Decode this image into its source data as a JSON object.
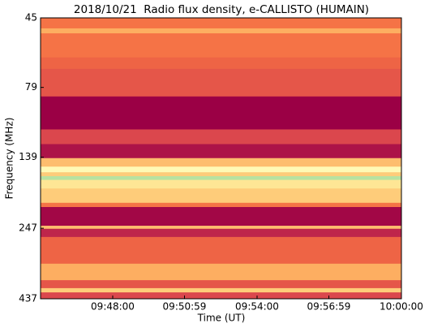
{
  "chart_data": {
    "type": "heatmap",
    "title": "2018/10/21  Radio flux density, e-CALLISTO (HUMAIN)",
    "xlabel": "Time (UT)",
    "ylabel": "Frequency (MHz)",
    "xlim": [
      "09:45:00",
      "10:00:00"
    ],
    "xticks": [
      "09:48:00",
      "09:50:59",
      "09:54:00",
      "09:56:59",
      "10:00:00"
    ],
    "ylim": [
      45,
      437
    ],
    "yticks": [
      45,
      79,
      139,
      247,
      437
    ],
    "y_log": true,
    "y_inverted": true,
    "y_bins": [
      45,
      49,
      51,
      62,
      68,
      85,
      111,
      125,
      140,
      150,
      157,
      162,
      167,
      179,
      201,
      208,
      242,
      248,
      265,
      329,
      376,
      401,
      415,
      437
    ],
    "values": [
      0.35,
      0.5,
      0.35,
      0.3,
      0.25,
      0.0,
      0.2,
      0.05,
      0.55,
      0.8,
      0.6,
      0.95,
      0.7,
      0.6,
      0.35,
      0.02,
      0.55,
      0.1,
      0.3,
      0.5,
      0.25,
      0.6,
      0.2
    ],
    "colormap": [
      "#9b0045",
      "#d53e4f",
      "#f46d43",
      "#fdae61",
      "#fee08b",
      "#ffffbf",
      "#99d594"
    ]
  }
}
